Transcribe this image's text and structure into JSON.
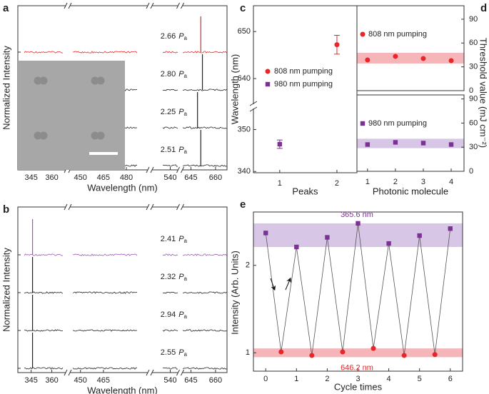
{
  "chart_data": [
    {
      "type": "spectra",
      "panel_label": "a",
      "x_label": "Wavelength (nm)",
      "y_label": "Normalized Intensity",
      "x_segments": [
        [
          340,
          368
        ],
        [
          445,
          487
        ],
        [
          535,
          545
        ],
        [
          640,
          667
        ]
      ],
      "xticks": [
        345,
        360,
        450,
        465,
        480,
        540,
        645,
        660
      ],
      "pump_unit": {
        "symbol": "P",
        "sub": "a"
      },
      "series": [
        {
          "name": "2.66",
          "color": "#e8262a",
          "peak": 651
        },
        {
          "name": "2.80",
          "color": "#222222",
          "peak": 652
        },
        {
          "name": "2.25",
          "color": "#222222",
          "peak": 649
        },
        {
          "name": "2.51",
          "color": "#222222",
          "peak": 651
        }
      ]
    },
    {
      "type": "spectra",
      "panel_label": "b",
      "x_label": "Wavelength (nm)",
      "y_label": "Normalized Intensity",
      "x_segments": [
        [
          340,
          368
        ],
        [
          445,
          487
        ],
        [
          535,
          545
        ],
        [
          640,
          667
        ]
      ],
      "xticks": [
        345,
        360,
        450,
        465,
        540,
        645,
        660
      ],
      "pump_unit": {
        "symbol": "P",
        "sub": "a"
      },
      "series": [
        {
          "name": "2.41",
          "color": "#9b59b6",
          "peak": 346
        },
        {
          "name": "2.32",
          "color": "#222222",
          "peak": 346
        },
        {
          "name": "2.94",
          "color": "#222222",
          "peak": 346
        },
        {
          "name": "2.55",
          "color": "#222222",
          "peak": 346
        }
      ]
    },
    {
      "type": "scatter_break",
      "panel_label": "c",
      "x_label": "Peaks",
      "y_label": "Wavelength (nm)",
      "xlim": [
        0.54,
        2.35
      ],
      "xticks": [
        1,
        2
      ],
      "ylim_upper": [
        635,
        655.5
      ],
      "yticks_upper": [
        640,
        650
      ],
      "ylim_lower": [
        339.7,
        354.5
      ],
      "yticks_lower": [
        340,
        350
      ],
      "series": [
        {
          "name": "808 nm pumping",
          "color": "#e8262a",
          "marker": "circle",
          "x": [
            2
          ],
          "values": [
            647.2
          ],
          "errors": [
            2
          ]
        },
        {
          "name": "980 nm pumping",
          "color": "#7b3294",
          "marker": "square",
          "x": [
            1
          ],
          "values": [
            346.5
          ],
          "errors": [
            1
          ]
        }
      ]
    },
    {
      "type": "threshold",
      "panel_label": "d",
      "x_label": "Photonic molecule",
      "y_label": "Threshold value (mJ cm⁻²)",
      "xlim": [
        0.62,
        4.46
      ],
      "xticks": [
        1,
        2,
        3,
        4
      ],
      "yticks": [
        0,
        30,
        60,
        90
      ],
      "series": [
        {
          "name": "808 nm pumping",
          "color": "#e8262a",
          "marker": "circle",
          "ylim": [
            0,
            107
          ],
          "values": [
            38.7,
            43.2,
            40.5,
            37.8
          ],
          "band": [
            34.2,
            47.7
          ],
          "band_color": "#f5b5b9"
        },
        {
          "name": "980 nm pumping",
          "color": "#7b3294",
          "marker": "square",
          "ylim": [
            0,
            95
          ],
          "values": [
            33.3,
            36,
            35.1,
            33.3
          ],
          "band": [
            28.8,
            40.5
          ],
          "band_color": "#d8c6e6"
        }
      ]
    },
    {
      "type": "line",
      "panel_label": "e",
      "x_label": "Cycle times",
      "y_label": "Intensity (Arb. Units)",
      "xlim": [
        -0.4,
        6.4
      ],
      "xticks": [
        0,
        1,
        2,
        3,
        4,
        5,
        6
      ],
      "ylim": [
        0.79,
        2.61
      ],
      "yticks": [
        1,
        2
      ],
      "series": [
        {
          "name": "365.6 nm",
          "color": "#7b3294",
          "marker": "square",
          "x": [
            0,
            1,
            2,
            3,
            4,
            5,
            6
          ],
          "values": [
            2.37,
            2.21,
            2.32,
            2.48,
            2.25,
            2.34,
            2.42
          ],
          "band": [
            2.21,
            2.48
          ],
          "band_color": "#d8c6e6"
        },
        {
          "name": "646.2 nm",
          "color": "#e8262a",
          "marker": "circle",
          "x": [
            0.5,
            1.5,
            2.5,
            3.5,
            4.5,
            5.5
          ],
          "values": [
            1.01,
            0.97,
            1.01,
            1.05,
            0.97,
            0.98
          ],
          "band": [
            0.95,
            1.05
          ],
          "band_color": "#f5b5b9"
        }
      ]
    }
  ]
}
